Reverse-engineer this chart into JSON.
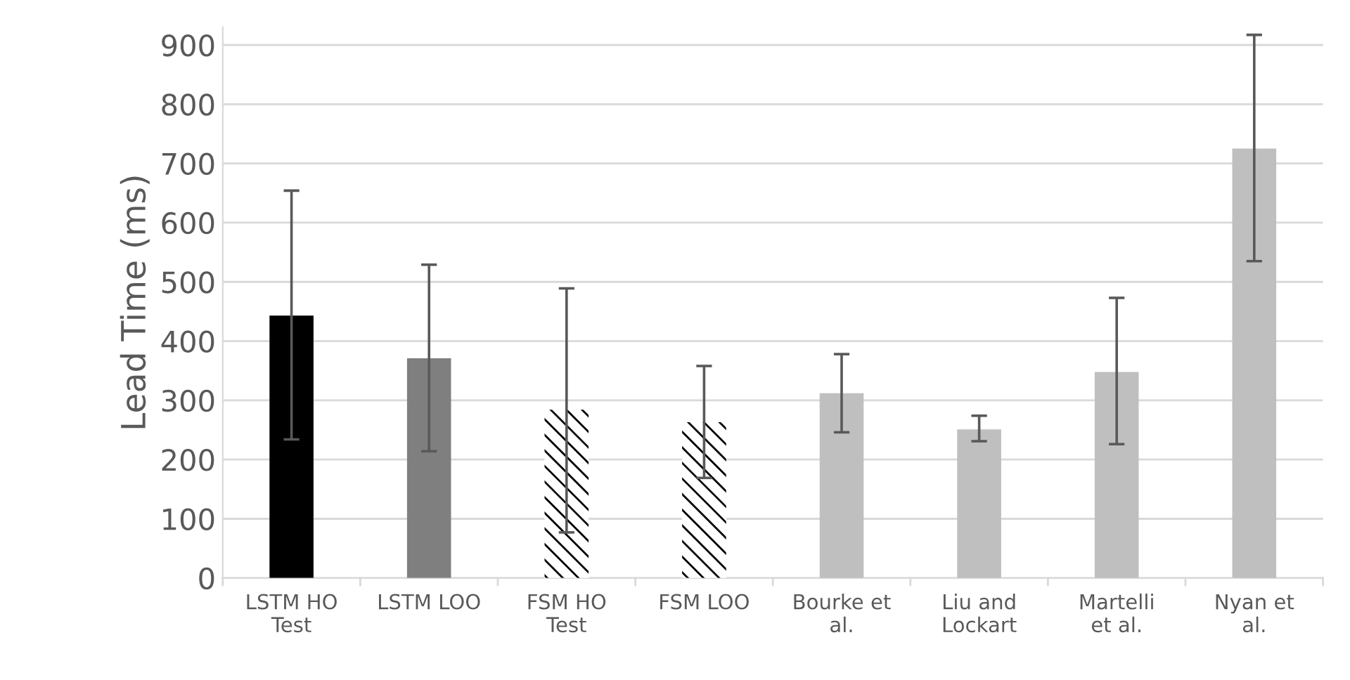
{
  "chart_data": {
    "type": "bar",
    "ylabel": "Lead Time (ms)",
    "categories": [
      "LSTM HO Test",
      "LSTM LOO",
      "FSM HO Test",
      "FSM LOO",
      "Bourke et al.",
      "Liu and Lockart",
      "Martelli et al.",
      "Nyan et al."
    ],
    "values": [
      443,
      371,
      284,
      263,
      312,
      251,
      348,
      725
    ],
    "errors": [
      [
        234,
        654
      ],
      [
        214,
        529
      ],
      [
        77,
        489
      ],
      [
        169,
        358
      ],
      [
        246,
        378
      ],
      [
        231,
        274
      ],
      [
        226,
        473
      ],
      [
        535,
        917
      ]
    ],
    "colors": [
      "#000000",
      "#7f7f7f",
      "#ffffff",
      "#ffffff",
      "#bfbfbf",
      "#bfbfbf",
      "#bfbfbf",
      "#bfbfbf"
    ],
    "ylim": [
      0,
      930
    ],
    "yticks": [
      0,
      100,
      200,
      300,
      400,
      500,
      600,
      700,
      800,
      900
    ],
    "grid": "y",
    "legend": false
  }
}
